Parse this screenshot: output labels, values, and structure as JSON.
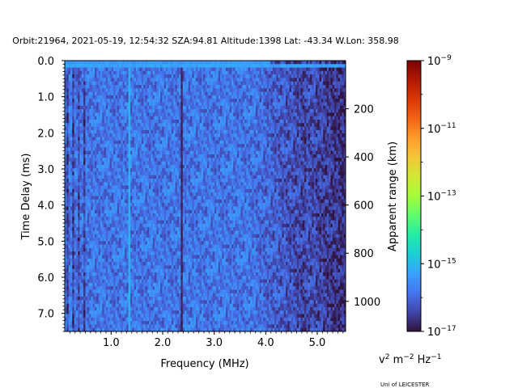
{
  "header": {
    "title": "Orbit:21964, 2021-05-19, 12:54:32 SZA:94.81 Altitude:1398 Lat: -43.34 W.Lon: 358.98"
  },
  "footer": {
    "credit": "Uni of LEICESTER"
  },
  "chart_data": {
    "type": "heatmap",
    "title": "Orbit:21964, 2021-05-19, 12:54:32 SZA:94.81 Altitude:1398 Lat: -43.34 W.Lon: 358.98",
    "xlabel": "Frequency (MHz)",
    "ylabel": "Time Delay (ms)",
    "y2label": "Apparent range (km)",
    "xlim": [
      0.1,
      5.55
    ],
    "ylim": [
      7.5,
      0.0
    ],
    "y2lim": [
      1125,
      0
    ],
    "x_ticks": [
      "1.0",
      "2.0",
      "3.0",
      "4.0",
      "5.0"
    ],
    "x_tick_values": [
      1.0,
      2.0,
      3.0,
      4.0,
      5.0
    ],
    "y_ticks": [
      "0.0",
      "1.0",
      "2.0",
      "3.0",
      "4.0",
      "5.0",
      "6.0",
      "7.0"
    ],
    "y_tick_values": [
      0.0,
      1.0,
      2.0,
      3.0,
      4.0,
      5.0,
      6.0,
      7.0
    ],
    "y2_ticks": [
      "200",
      "400",
      "600",
      "800",
      "1000"
    ],
    "y2_tick_values": [
      200,
      400,
      600,
      800,
      1000
    ],
    "colorbar": {
      "label": "v² m⁻² Hz⁻¹",
      "label_parts": [
        "v",
        "2",
        " m",
        "−2",
        " Hz",
        "−1"
      ],
      "scale": "log",
      "range_exponent": [
        -17,
        -9
      ],
      "ticks": [
        {
          "base": "10",
          "exp": "−9",
          "value": -9
        },
        {
          "base": "10",
          "exp": "−11",
          "value": -11
        },
        {
          "base": "10",
          "exp": "−13",
          "value": -13
        },
        {
          "base": "10",
          "exp": "−15",
          "value": -15
        },
        {
          "base": "10",
          "exp": "−17",
          "value": -17
        }
      ],
      "colors": [
        "#30123b",
        "#4145ab",
        "#4675ed",
        "#39a2fc",
        "#1bcfd4",
        "#24eca6",
        "#61fc6c",
        "#a4fc3b",
        "#d1e834",
        "#f3c63a",
        "#fe9b2d",
        "#f36315",
        "#d93806",
        "#b11901",
        "#7a0402"
      ]
    },
    "features": [
      {
        "type": "vertical-band",
        "label": "dark interference line",
        "x": 2.37,
        "value_exp": -16.8
      },
      {
        "type": "vertical-band",
        "label": "bright interference line",
        "x": 1.35,
        "value_exp": -15.1
      },
      {
        "type": "horizontal-band",
        "label": "transmit pulse",
        "y": 0.15,
        "value_exp": -15.3
      }
    ]
  }
}
